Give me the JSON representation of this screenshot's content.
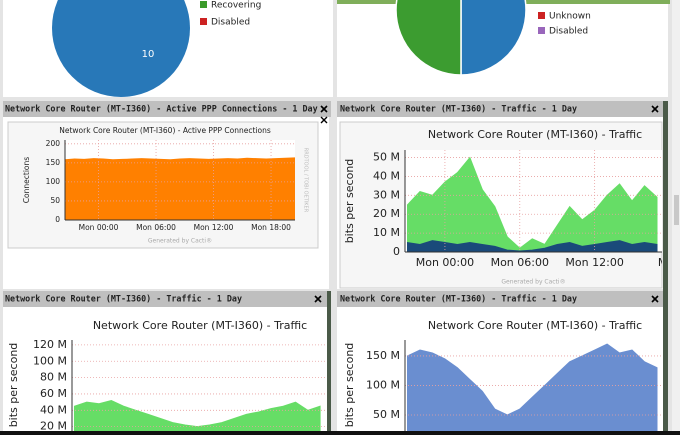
{
  "panels": [
    {
      "chart_data": {
        "type": "pie",
        "values": [
          10
        ],
        "colors": [
          "#2878b8"
        ],
        "labels": true,
        "legend": [
          {
            "label": "Recovering",
            "color": "#3a9a2a"
          },
          {
            "label": "Disabled",
            "color": "#cc2222"
          }
        ]
      }
    },
    {
      "chart_data": {
        "type": "pie",
        "values": [
          1,
          1
        ],
        "colors": [
          "#2878b8",
          "#3c9c30"
        ],
        "labels": false,
        "legend": [
          {
            "label": "Unknown",
            "color": "#cc2222"
          },
          {
            "label": "Disabled",
            "color": "#9966bb"
          }
        ]
      }
    },
    {
      "header": "Network Core Router (MT-I360) - Active PPP Connections - 1 Day",
      "chart_data": {
        "type": "area",
        "title": "Network Core Router (MT-I360) - Active PPP Connections",
        "y_label": "Connections",
        "footer": "Generated by Cacti®",
        "watermark": "RRDTOOL / TOBI OETIKER",
        "x": [
          -3.5,
          -2.5,
          -1.5,
          -0.5,
          0.5,
          1.5,
          2.5,
          3.5,
          4.5,
          5.5,
          6.5,
          7.5,
          8.5,
          9.5,
          10.5,
          11.5,
          12.5,
          13.5,
          14.5,
          15.5,
          16.5,
          17.5,
          18.5,
          19.5,
          20.5
        ],
        "xlim": [
          -3.5,
          20.5
        ],
        "xticks": [
          {
            "value": 0,
            "label": "Mon 00:00"
          },
          {
            "value": 6,
            "label": "Mon 06:00"
          },
          {
            "value": 12,
            "label": "Mon 12:00"
          },
          {
            "value": 18,
            "label": "Mon 18:00"
          }
        ],
        "ylim": [
          0,
          210
        ],
        "yticks": [
          0,
          50,
          100,
          150,
          200
        ],
        "grid": true,
        "series": [
          {
            "color": "#ff8000",
            "values": [
              158,
              160,
              159,
              161,
              160,
              158,
              159,
              160,
              161,
              160,
              159,
              158,
              160,
              161,
              160,
              159,
              160,
              161,
              160,
              162,
              161,
              160,
              161,
              162,
              163
            ]
          }
        ]
      }
    },
    {
      "header": "Network Core Router (MT-I360) - Traffic - 1 Day",
      "chart_data": {
        "type": "area",
        "title": "Network Core Router (MT-I360) - Traffic",
        "y_label": "bits per second",
        "footer": "Generated by Cacti®",
        "x": [
          -3,
          -2,
          -1,
          0,
          1,
          2,
          3,
          4,
          5,
          6,
          7,
          8,
          9,
          10,
          11,
          12,
          13,
          14,
          15,
          16,
          17
        ],
        "xlim": [
          -3.2,
          17.4
        ],
        "xticks": [
          {
            "value": 0,
            "label": "Mon 00:00"
          },
          {
            "value": 6,
            "label": "Mon 06:00"
          },
          {
            "value": 12,
            "label": "Mon 12:00"
          },
          {
            "value": 18,
            "label": "Mon"
          }
        ],
        "ylim": [
          0,
          54
        ],
        "yticks": [
          0,
          {
            "value": 10,
            "label": "10 M"
          },
          {
            "value": 20,
            "label": "20 M"
          },
          {
            "value": 30,
            "label": "30 M"
          },
          {
            "value": 40,
            "label": "40 M"
          },
          {
            "value": 50,
            "label": "50 M"
          }
        ],
        "grid": true,
        "series": [
          {
            "color": "#66dd66",
            "values": [
              25,
              32,
              30,
              37,
              42,
              50,
              33,
              24,
              8,
              2,
              7,
              4,
              14,
              24,
              17,
              22,
              30,
              36,
              27,
              35,
              29
            ]
          },
          {
            "color": "#1a4a7a",
            "values": [
              5,
              4,
              6,
              5,
              4,
              5,
              4,
              3,
              1,
              0.5,
              1,
              2,
              4,
              5,
              3,
              4,
              5,
              6,
              4,
              5,
              4
            ]
          }
        ]
      }
    },
    {
      "header": "Network Core Router (MT-I360) - Traffic - 1 Day",
      "chart_data": {
        "type": "area",
        "title": "Network Core Router (MT-I360) - Traffic",
        "y_label": "bits per second",
        "x": [
          -3,
          -2,
          -1,
          0,
          1,
          2,
          3,
          4,
          5,
          6,
          7,
          8,
          9,
          10,
          11,
          12,
          13,
          14,
          15,
          16,
          17
        ],
        "xlim": [
          -3.2,
          17.4
        ],
        "ylim": [
          0,
          126
        ],
        "yticks": [
          {
            "value": 20,
            "label": "20 M"
          },
          {
            "value": 40,
            "label": "40 M"
          },
          {
            "value": 60,
            "label": "60 M"
          },
          {
            "value": 80,
            "label": "80 M"
          },
          {
            "value": 100,
            "label": "100 M"
          },
          {
            "value": 120,
            "label": "120 M"
          }
        ],
        "grid": true,
        "series": [
          {
            "color": "#66dd66",
            "values": [
              45,
              50,
              48,
              52,
              45,
              40,
              35,
              30,
              25,
              22,
              20,
              22,
              25,
              30,
              35,
              38,
              42,
              45,
              50,
              40,
              45
            ]
          }
        ]
      }
    },
    {
      "header": "Network Core Router (MT-I360) - Traffic - 1 Day",
      "chart_data": {
        "type": "area",
        "title": "Network Core Router (MT-I360) - Traffic",
        "y_label": "bits per second",
        "x": [
          -3,
          -2,
          -1,
          0,
          1,
          2,
          3,
          4,
          5,
          6,
          7,
          8,
          9,
          10,
          11,
          12,
          13,
          14,
          15,
          16,
          17
        ],
        "xlim": [
          -3.2,
          17.4
        ],
        "ylim": [
          0,
          177
        ],
        "yticks": [
          {
            "value": 50,
            "label": "50 M"
          },
          {
            "value": 100,
            "label": "100 M"
          },
          {
            "value": 150,
            "label": "150 M"
          }
        ],
        "grid": true,
        "series": [
          {
            "color": "#6a8ed0",
            "values": [
              150,
              160,
              155,
              145,
              130,
              110,
              90,
              60,
              50,
              60,
              80,
              100,
              120,
              140,
              150,
              160,
              170,
              155,
              160,
              140,
              130
            ]
          }
        ]
      }
    }
  ]
}
